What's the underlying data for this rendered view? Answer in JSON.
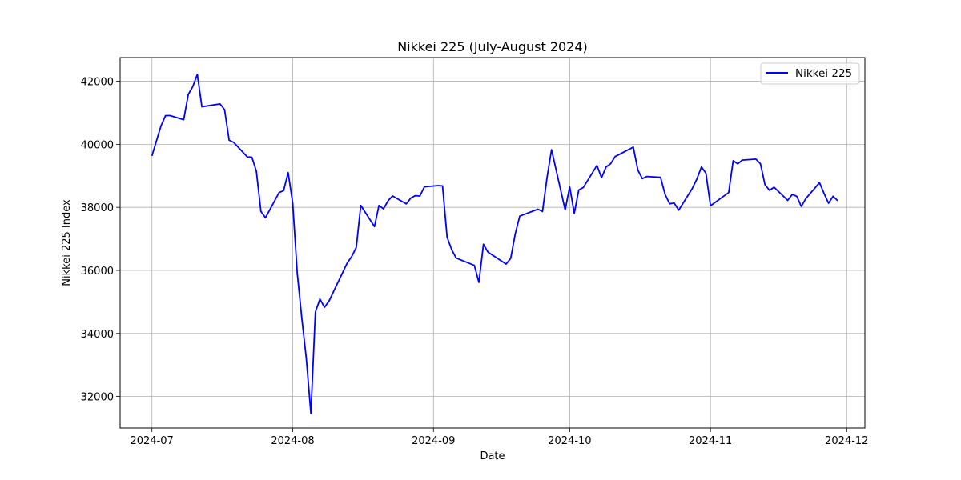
{
  "chart_data": {
    "type": "line",
    "title": "Nikkei 225 (July-August 2024)",
    "xlabel": "Date",
    "ylabel": "Nikkei 225 Index",
    "xlim": [
      "2024-06-24",
      "2024-12-05"
    ],
    "ylim": [
      31000,
      42750
    ],
    "grid": true,
    "legend_position": "top-right",
    "x_ticks": [
      {
        "date": "2024-07-01",
        "label": "2024-07"
      },
      {
        "date": "2024-08-01",
        "label": "2024-08"
      },
      {
        "date": "2024-09-01",
        "label": "2024-09"
      },
      {
        "date": "2024-10-01",
        "label": "2024-10"
      },
      {
        "date": "2024-11-01",
        "label": "2024-11"
      },
      {
        "date": "2024-12-01",
        "label": "2024-12"
      }
    ],
    "y_ticks": [
      32000,
      34000,
      36000,
      38000,
      40000,
      42000
    ],
    "series": [
      {
        "name": "Nikkei 225",
        "color": "#0000ff",
        "points": [
          [
            "2024-07-01",
            39630
          ],
          [
            "2024-07-03",
            40580
          ],
          [
            "2024-07-04",
            40910
          ],
          [
            "2024-07-05",
            40910
          ],
          [
            "2024-07-08",
            40780
          ],
          [
            "2024-07-09",
            41580
          ],
          [
            "2024-07-10",
            41830
          ],
          [
            "2024-07-11",
            42220
          ],
          [
            "2024-07-12",
            41190
          ],
          [
            "2024-07-16",
            41280
          ],
          [
            "2024-07-17",
            41100
          ],
          [
            "2024-07-18",
            40130
          ],
          [
            "2024-07-19",
            40060
          ],
          [
            "2024-07-22",
            39600
          ],
          [
            "2024-07-23",
            39590
          ],
          [
            "2024-07-24",
            39150
          ],
          [
            "2024-07-25",
            37870
          ],
          [
            "2024-07-26",
            37670
          ],
          [
            "2024-07-29",
            38470
          ],
          [
            "2024-07-30",
            38530
          ],
          [
            "2024-07-31",
            39100
          ],
          [
            "2024-08-01",
            38130
          ],
          [
            "2024-08-02",
            35910
          ],
          [
            "2024-08-03",
            34500
          ],
          [
            "2024-08-04",
            33200
          ],
          [
            "2024-08-05",
            31460
          ],
          [
            "2024-08-06",
            34680
          ],
          [
            "2024-08-07",
            35090
          ],
          [
            "2024-08-08",
            34830
          ],
          [
            "2024-08-09",
            35030
          ],
          [
            "2024-08-13",
            36230
          ],
          [
            "2024-08-14",
            36440
          ],
          [
            "2024-08-15",
            36730
          ],
          [
            "2024-08-16",
            38060
          ],
          [
            "2024-08-19",
            37390
          ],
          [
            "2024-08-20",
            38060
          ],
          [
            "2024-08-21",
            37950
          ],
          [
            "2024-08-22",
            38210
          ],
          [
            "2024-08-23",
            38360
          ],
          [
            "2024-08-26",
            38110
          ],
          [
            "2024-08-27",
            38290
          ],
          [
            "2024-08-28",
            38370
          ],
          [
            "2024-08-29",
            38360
          ],
          [
            "2024-08-30",
            38650
          ],
          [
            "2024-09-02",
            38690
          ],
          [
            "2024-09-03",
            38680
          ],
          [
            "2024-09-04",
            37050
          ],
          [
            "2024-09-05",
            36660
          ],
          [
            "2024-09-06",
            36390
          ],
          [
            "2024-09-10",
            36160
          ],
          [
            "2024-09-11",
            35620
          ],
          [
            "2024-09-12",
            36830
          ],
          [
            "2024-09-13",
            36580
          ],
          [
            "2024-09-17",
            36200
          ],
          [
            "2024-09-18",
            36380
          ],
          [
            "2024-09-19",
            37160
          ],
          [
            "2024-09-20",
            37720
          ],
          [
            "2024-09-24",
            37940
          ],
          [
            "2024-09-25",
            37870
          ],
          [
            "2024-09-26",
            38930
          ],
          [
            "2024-09-27",
            39830
          ],
          [
            "2024-09-30",
            37920
          ],
          [
            "2024-10-01",
            38650
          ],
          [
            "2024-10-02",
            37810
          ],
          [
            "2024-10-03",
            38550
          ],
          [
            "2024-10-04",
            38630
          ],
          [
            "2024-10-07",
            39330
          ],
          [
            "2024-10-08",
            38940
          ],
          [
            "2024-10-09",
            39280
          ],
          [
            "2024-10-10",
            39380
          ],
          [
            "2024-10-11",
            39610
          ],
          [
            "2024-10-15",
            39910
          ],
          [
            "2024-10-16",
            39180
          ],
          [
            "2024-10-17",
            38910
          ],
          [
            "2024-10-18",
            38980
          ],
          [
            "2024-10-21",
            38950
          ],
          [
            "2024-10-22",
            38410
          ],
          [
            "2024-10-23",
            38110
          ],
          [
            "2024-10-24",
            38140
          ],
          [
            "2024-10-25",
            37910
          ],
          [
            "2024-10-28",
            38600
          ],
          [
            "2024-10-29",
            38900
          ],
          [
            "2024-10-30",
            39280
          ],
          [
            "2024-10-31",
            39080
          ],
          [
            "2024-11-01",
            38050
          ],
          [
            "2024-11-05",
            38470
          ],
          [
            "2024-11-06",
            39480
          ],
          [
            "2024-11-07",
            39380
          ],
          [
            "2024-11-08",
            39500
          ],
          [
            "2024-11-11",
            39530
          ],
          [
            "2024-11-12",
            39380
          ],
          [
            "2024-11-13",
            38720
          ],
          [
            "2024-11-14",
            38540
          ],
          [
            "2024-11-15",
            38640
          ],
          [
            "2024-11-18",
            38220
          ],
          [
            "2024-11-19",
            38410
          ],
          [
            "2024-11-20",
            38350
          ],
          [
            "2024-11-21",
            38030
          ],
          [
            "2024-11-22",
            38280
          ],
          [
            "2024-11-25",
            38780
          ],
          [
            "2024-11-26",
            38440
          ],
          [
            "2024-11-27",
            38130
          ],
          [
            "2024-11-28",
            38350
          ],
          [
            "2024-11-29",
            38210
          ]
        ]
      }
    ]
  }
}
